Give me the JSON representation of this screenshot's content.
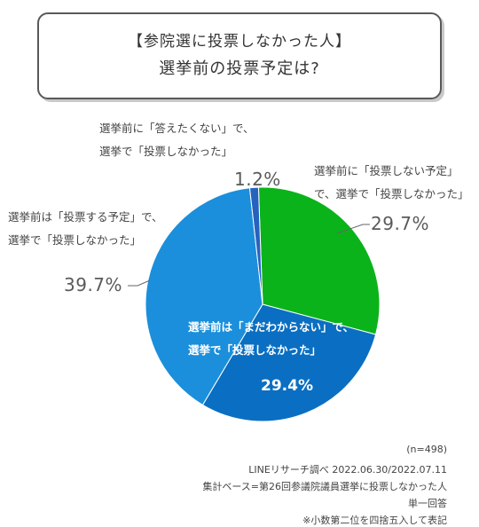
{
  "header": {
    "title_line1": "【参院選に投票しなかった人】",
    "title_line2": "選挙前の投票予定は?"
  },
  "chart_data": {
    "type": "pie",
    "start_angle_deg": -2,
    "direction": "clockwise",
    "slices": [
      {
        "label_line1": "選挙前に「投票しない予定」",
        "label_line2": "で、選挙で「投票しなかった」",
        "value": 29.7,
        "value_text": "29.7%",
        "color": "#0bb31a"
      },
      {
        "label_line1": "選挙前は「まだわからない」で、",
        "label_line2": "選挙で「投票しなかった」",
        "value": 29.4,
        "value_text": "29.4%",
        "color": "#0a6fc2"
      },
      {
        "label_line1": "選挙前は「投票する予定」で、",
        "label_line2": "選挙で「投票しなかった」",
        "value": 39.7,
        "value_text": "39.7%",
        "color": "#1b8fdb"
      },
      {
        "label_line1": "選挙前に「答えたくない」で、",
        "label_line2": "選挙で「投票しなかった」",
        "value": 1.2,
        "value_text": "1.2%",
        "color": "#2663bf"
      }
    ]
  },
  "footer": {
    "n": "(n=498)",
    "source": "LINEリサーチ調べ 2022.06.30/2022.07.11",
    "base": "集計ベース=第26回参議院議員選挙に投票しなかった人",
    "answer_type": "単一回答",
    "note": "※小数第二位を四捨五入して表記"
  }
}
